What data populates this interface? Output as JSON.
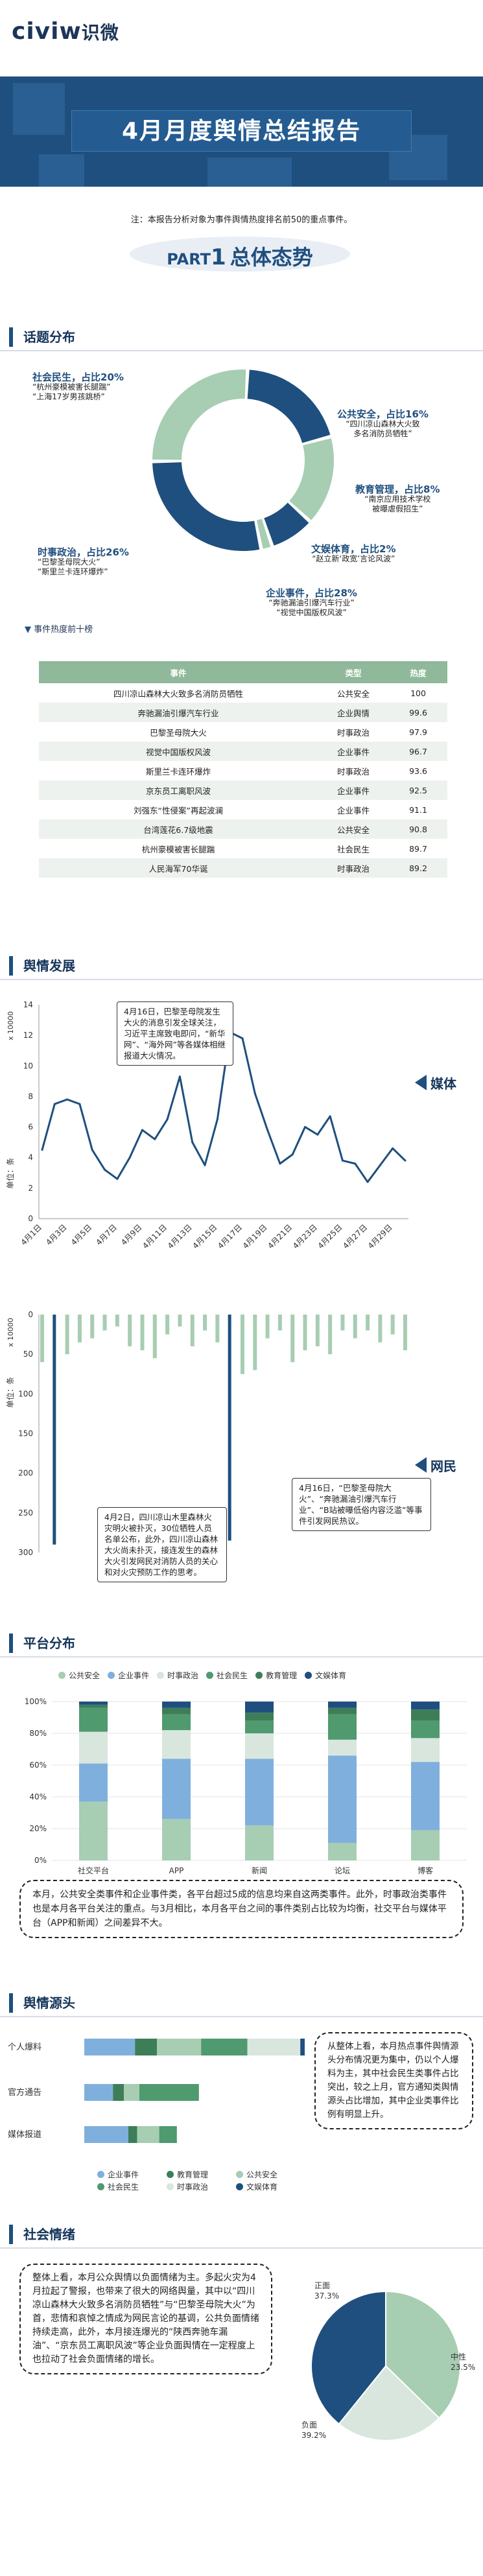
{
  "header": {
    "logo": "civiw",
    "logo_cn": "识微",
    "title": "4月月度舆情总结报告"
  },
  "note": "注：本报告分析对象为事件舆情热度排名前50的重点事件。",
  "part": {
    "label": "PART",
    "num": "1",
    "text": "总体态势"
  },
  "sections": {
    "topic": "话题分布",
    "trend": "舆情发展",
    "platform": "平台分布",
    "source": "舆情源头",
    "sentiment": "社会情绪"
  },
  "colors": {
    "navy": "#1f4f7e",
    "green": "#4f9a6e",
    "lightgreen": "#a7cdb3",
    "blue": "#7fb0dd",
    "pale": "#d8e6de",
    "darkgreen": "#3d7e58"
  },
  "topic_labels": [
    {
      "title": "社会民生，占比20%",
      "lines": [
        "“杭州豪模被害长腿踹”",
        "“上海17岁男孩跳桥”"
      ]
    },
    {
      "title": "公共安全，占比16%",
      "lines": [
        "“四川凉山森林大火致",
        "多名消防员牺牲”"
      ]
    },
    {
      "title": "教育管理，占比8%",
      "lines": [
        "“南京应用技术学校",
        "被曝虐假招生”"
      ]
    },
    {
      "title": "文娱体育，占比2%",
      "lines": [
        "“赵立新‘政宽’言论风波”"
      ]
    },
    {
      "title": "企业事件，占比28%",
      "lines": [
        "“奔驰漏油引爆汽车行业”",
        "“视觉中国版权风波”"
      ]
    },
    {
      "title": "时事政治，占比26%",
      "lines": [
        "“巴黎圣母院大火”",
        "“斯里兰卡连环爆炸”"
      ]
    }
  ],
  "hot_title": "事件热度前十榜",
  "hot_table": {
    "headers": [
      "事件",
      "类型",
      "热度"
    ],
    "rows": [
      [
        "四川凉山森林大火致多名消防员牺牲",
        "公共安全",
        "100"
      ],
      [
        "奔驰漏油引爆汽车行业",
        "企业舆情",
        "99.6"
      ],
      [
        "巴黎圣母院大火",
        "时事政治",
        "97.9"
      ],
      [
        "视觉中国版权风波",
        "企业事件",
        "96.7"
      ],
      [
        "斯里兰卡连环爆炸",
        "时事政治",
        "93.6"
      ],
      [
        "京东员工离职风波",
        "企业事件",
        "92.5"
      ],
      [
        "刘强东“性侵案”再起波澜",
        "企业事件",
        "91.1"
      ],
      [
        "台湾莲花6.7级地震",
        "公共安全",
        "90.8"
      ],
      [
        "杭州豪模被害长腿踹",
        "社会民生",
        "89.7"
      ],
      [
        "人民海军70华诞",
        "时事政治",
        "89.2"
      ]
    ]
  },
  "trend": {
    "media_label": "媒体",
    "netizen_label": "网民",
    "unit_top": "单位：条",
    "unit_bottom": "单位：条",
    "mult_top": "x 10000",
    "mult_bottom": "x 10000",
    "callout_media": "4月16日，巴黎圣母院发生大火的消息引发全球关注，习近平主席致电即问，“新华网”、“海外网”等各媒体相继报道大火情况。",
    "callout_net1": "4月2日，四川凉山木里森林火灾明火被扑灭，30位牺牲人员名单公布，此外，四川凉山森林大火尚未扑灭，接连发生的森林大火引发网民对消防人员的关心和对火灾预防工作的思考。",
    "callout_net2": "4月16日，“巴黎圣母院大火”、“奔驰漏油引爆汽车行业”、“B站被曝低俗内容泛滥”等事件引发网民热议。"
  },
  "chart_data": [
    {
      "type": "line",
      "title": "",
      "x": [
        "4月1日",
        "4月2日",
        "4月3日",
        "4月4日",
        "4月5日",
        "4月6日",
        "4月7日",
        "4月8日",
        "4月9日",
        "4月10日",
        "4月11日",
        "4月12日",
        "4月13日",
        "4月14日",
        "4月15日",
        "4月16日",
        "4月17日",
        "4月18日",
        "4月19日",
        "4月20日",
        "4月21日",
        "4月22日",
        "4月23日",
        "4月24日",
        "4月25日",
        "4月26日",
        "4月27日",
        "4月28日",
        "4月29日",
        "4月30日"
      ],
      "x_ticks": [
        "4月1日",
        "4月3日",
        "4月5日",
        "4月7日",
        "4月9日",
        "4月11日",
        "4月13日",
        "4月15日",
        "4月17日",
        "4月19日",
        "4月21日",
        "4月23日",
        "4月25日",
        "4月27日",
        "4月29日"
      ],
      "series": [
        {
          "name": "媒体",
          "values": [
            4.5,
            7.5,
            7.8,
            7.5,
            4.5,
            3.2,
            2.6,
            4.0,
            5.8,
            5.2,
            6.5,
            9.3,
            5.0,
            3.5,
            6.5,
            12.2,
            11.8,
            8.2,
            5.8,
            3.6,
            4.2,
            6.0,
            5.5,
            6.7,
            3.8,
            3.6,
            2.4,
            3.5,
            4.6,
            3.8
          ]
        }
      ],
      "ylim": [
        0,
        14
      ],
      "yticks": [
        0,
        2,
        4,
        6,
        8,
        10,
        12,
        14
      ]
    },
    {
      "type": "bar",
      "title": "",
      "x": [
        "4月1日",
        "4月2日",
        "4月3日",
        "4月4日",
        "4月5日",
        "4月6日",
        "4月7日",
        "4月8日",
        "4月9日",
        "4月10日",
        "4月11日",
        "4月12日",
        "4月13日",
        "4月14日",
        "4月15日",
        "4月16日",
        "4月17日",
        "4月18日",
        "4月19日",
        "4月20日",
        "4月21日",
        "4月22日",
        "4月23日",
        "4月24日",
        "4月25日",
        "4月26日",
        "4月27日",
        "4月28日",
        "4月29日",
        "4月30日"
      ],
      "series": [
        {
          "name": "网民",
          "values": [
            60,
            290,
            50,
            35,
            30,
            20,
            15,
            40,
            45,
            55,
            25,
            15,
            40,
            20,
            35,
            285,
            75,
            70,
            30,
            20,
            60,
            45,
            40,
            50,
            20,
            30,
            20,
            35,
            25,
            45
          ]
        }
      ],
      "ylim": [
        0,
        300
      ],
      "yticks": [
        0,
        50,
        100,
        150,
        200,
        250,
        300
      ]
    },
    {
      "type": "bar",
      "stacked": true,
      "title": "",
      "categories": [
        "社交平台",
        "APP",
        "新闻",
        "论坛",
        "博客"
      ],
      "series": [
        {
          "name": "公共安全",
          "values": [
            37,
            26,
            22,
            11,
            19
          ]
        },
        {
          "name": "企业事件",
          "values": [
            24,
            38,
            42,
            55,
            43
          ]
        },
        {
          "name": "时事政治",
          "values": [
            20,
            18,
            16,
            10,
            15
          ]
        },
        {
          "name": "社会民生",
          "values": [
            15,
            10,
            8,
            16,
            11
          ]
        },
        {
          "name": "教育管理",
          "values": [
            2,
            4,
            5,
            4,
            7
          ]
        },
        {
          "name": "文娱体育",
          "values": [
            2,
            4,
            7,
            4,
            5
          ]
        }
      ],
      "yticks": [
        "0%",
        "20%",
        "40%",
        "60%",
        "80%",
        "100%"
      ],
      "ylim": [
        0,
        100
      ]
    },
    {
      "type": "bar",
      "stacked": true,
      "orientation": "horizontal",
      "title": "",
      "categories": [
        "个人爆料",
        "官方通告",
        "媒体报道"
      ],
      "series": [
        {
          "name": "企业事件",
          "values": [
            23,
            13,
            20
          ]
        },
        {
          "name": "教育管理",
          "values": [
            10,
            5,
            4
          ]
        },
        {
          "name": "公共安全",
          "values": [
            20,
            7,
            10
          ]
        },
        {
          "name": "社会民生",
          "values": [
            21,
            27,
            8
          ]
        },
        {
          "name": "时事政治",
          "values": [
            24,
            0,
            0
          ]
        },
        {
          "name": "文娱体育",
          "values": [
            2,
            0,
            0
          ]
        }
      ]
    },
    {
      "type": "pie",
      "title": "",
      "categories": [
        "正面",
        "中性",
        "负面"
      ],
      "values": [
        37.3,
        23.5,
        39.2
      ],
      "labels": [
        "37.3%",
        "23.5%",
        "39.2%"
      ]
    }
  ],
  "platform_text": "本月，公共安全类事件和企业事件类，各平台超过5成的信息均来自这两类事件。此外，时事政治类事件也是本月各平台关注的重点。与3月相比，本月各平台之间的事件类别占比较为均衡，社交平台与媒体平台（APP和新闻）之间差异不大。",
  "source_text": "从整体上看，本月热点事件舆情源头分布情况更为集中，仍以个人爆料为主，其中社会民生类事件占比突出，较之上月，官方通知类舆情源头占比增加，其中企业类事件比例有明显上升。",
  "sentiment_text": "整体上看，本月公众舆情以负面情绪为主。多起火灾为4月拉起了警报，也带来了很大的网络舆量，其中以“四川凉山森林大火致多名消防员牺牲”与“巴黎圣母院大火”为首，悲情和哀悼之情成为网民言论的基调，公共负面情绪持续走高，此外，本月接连爆光的“陕西奔驰车漏油”、“京东员工离职风波”等企业负面舆情在一定程度上也拉动了社会负面情绪的增长。"
}
